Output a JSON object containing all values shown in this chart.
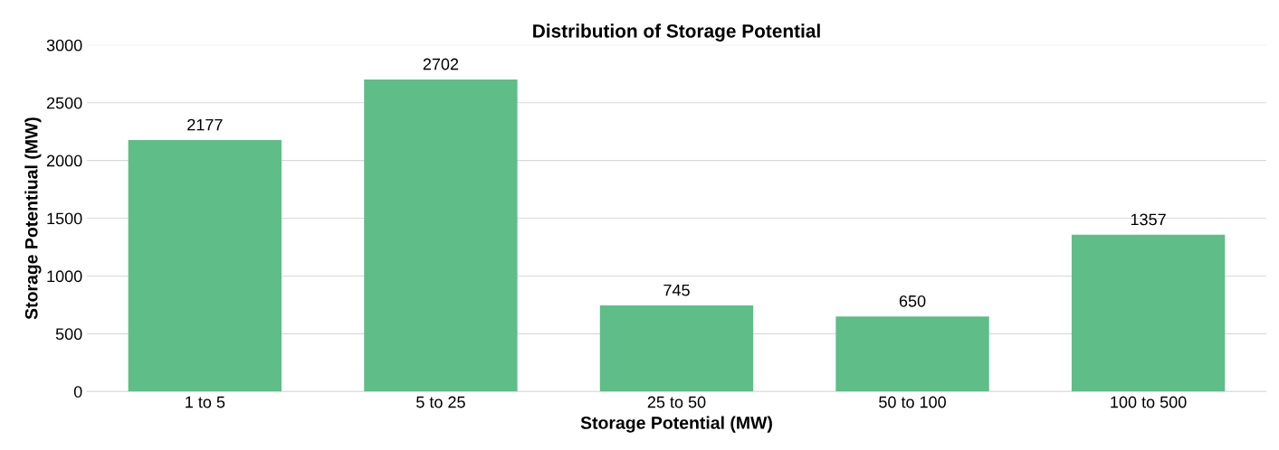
{
  "chart_data": {
    "type": "bar",
    "title": "Distribution of Storage Potential",
    "xlabel": "Storage Potential (MW)",
    "ylabel": "Storage Potentiual (MW)",
    "categories": [
      "1 to 5",
      "5 to 25",
      "25 to 50",
      "50 to 100",
      "100 to 500"
    ],
    "values": [
      2177,
      2702,
      745,
      650,
      1357
    ],
    "color": "#5fbd87",
    "ylim": [
      0,
      3000
    ],
    "yticks": [
      0,
      500,
      1000,
      1500,
      2000,
      2500,
      3000
    ],
    "grid": "y",
    "data_labels": true,
    "legend": false
  }
}
